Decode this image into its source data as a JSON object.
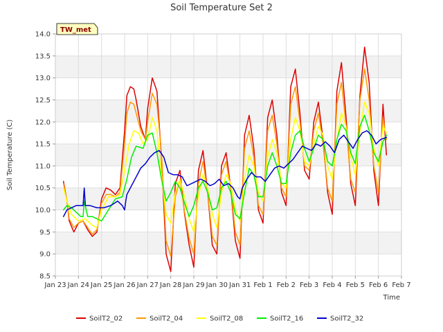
{
  "chart_data": {
    "type": "line",
    "title": "Soil Temperature Set 2",
    "xlabel": "Time",
    "ylabel": "Soil Temperature (C)",
    "badge": "TW_met",
    "ylim": [
      8.5,
      14.0
    ],
    "yticks": [
      "8.5",
      "9.0",
      "9.5",
      "10.0",
      "10.5",
      "11.0",
      "11.5",
      "12.0",
      "12.5",
      "13.0",
      "13.5",
      "14.0"
    ],
    "xlim": [
      0,
      15
    ],
    "xticks": [
      "Jan 23",
      "Jan 24",
      "Jan 25",
      "Jan 26",
      "Jan 27",
      "Jan 28",
      "Jan 29",
      "Jan 30",
      "Jan 31",
      "Feb 1",
      "Feb 2",
      "Feb 3",
      "Feb 4",
      "Feb 5",
      "Feb 6",
      "Feb 7"
    ],
    "grid": true,
    "legend_position": "bottom",
    "series": [
      {
        "name": "SoilT2_02",
        "color": "#dd0000",
        "x": [
          0.35,
          0.5,
          0.6,
          0.8,
          1.0,
          1.2,
          1.4,
          1.6,
          1.8,
          2.0,
          2.2,
          2.4,
          2.6,
          2.8,
          3.0,
          3.1,
          3.25,
          3.4,
          3.5,
          3.7,
          3.9,
          4.0,
          4.2,
          4.4,
          4.6,
          4.8,
          5.0,
          5.2,
          5.4,
          5.6,
          5.8,
          6.0,
          6.2,
          6.4,
          6.6,
          6.8,
          7.0,
          7.2,
          7.4,
          7.6,
          7.8,
          8.0,
          8.2,
          8.4,
          8.6,
          8.8,
          9.0,
          9.2,
          9.4,
          9.6,
          9.8,
          10.0,
          10.2,
          10.4,
          10.6,
          10.8,
          11.0,
          11.2,
          11.4,
          11.6,
          11.8,
          12.0,
          12.2,
          12.4,
          12.6,
          12.8,
          13.0,
          13.2,
          13.4,
          13.6,
          13.8,
          14.0,
          14.2,
          14.35
        ],
        "y": [
          10.65,
          10.2,
          9.75,
          9.5,
          9.7,
          9.75,
          9.55,
          9.4,
          9.5,
          10.25,
          10.5,
          10.45,
          10.35,
          10.5,
          11.8,
          12.6,
          12.8,
          12.75,
          12.5,
          11.9,
          11.6,
          12.3,
          13.0,
          12.7,
          11.2,
          9.0,
          8.6,
          10.6,
          10.9,
          9.9,
          9.2,
          8.7,
          10.9,
          11.35,
          10.4,
          9.2,
          9.0,
          11.0,
          11.3,
          10.5,
          9.3,
          8.9,
          11.7,
          12.15,
          11.4,
          10.0,
          9.7,
          12.1,
          12.5,
          11.7,
          10.4,
          10.1,
          12.8,
          13.2,
          12.2,
          10.9,
          10.7,
          12.0,
          12.45,
          11.6,
          10.4,
          9.9,
          12.7,
          13.35,
          12.1,
          10.6,
          10.1,
          12.6,
          13.7,
          12.9,
          10.9,
          10.1,
          12.4,
          11.25
        ]
      },
      {
        "name": "SoilT2_04",
        "color": "#ff9900",
        "x": [
          0.35,
          0.5,
          0.6,
          0.8,
          1.0,
          1.2,
          1.4,
          1.6,
          1.8,
          2.0,
          2.2,
          2.4,
          2.6,
          2.8,
          3.0,
          3.1,
          3.25,
          3.4,
          3.5,
          3.7,
          3.9,
          4.0,
          4.2,
          4.4,
          4.6,
          4.8,
          5.0,
          5.2,
          5.4,
          5.6,
          5.8,
          6.0,
          6.2,
          6.4,
          6.6,
          6.8,
          7.0,
          7.2,
          7.4,
          7.6,
          7.8,
          8.0,
          8.2,
          8.4,
          8.6,
          8.8,
          9.0,
          9.2,
          9.4,
          9.6,
          9.8,
          10.0,
          10.2,
          10.4,
          10.6,
          10.8,
          11.0,
          11.2,
          11.4,
          11.6,
          11.8,
          12.0,
          12.2,
          12.4,
          12.6,
          12.8,
          13.0,
          13.2,
          13.4,
          13.6,
          13.8,
          14.0,
          14.2,
          14.35
        ],
        "y": [
          10.6,
          10.2,
          9.8,
          9.6,
          9.7,
          9.75,
          9.6,
          9.45,
          9.55,
          10.15,
          10.35,
          10.35,
          10.3,
          10.4,
          11.5,
          12.2,
          12.45,
          12.4,
          12.2,
          11.8,
          11.6,
          12.0,
          12.65,
          12.4,
          11.3,
          9.3,
          8.95,
          10.3,
          10.7,
          9.95,
          9.35,
          9.0,
          10.6,
          11.1,
          10.4,
          9.4,
          9.2,
          10.8,
          11.1,
          10.5,
          9.5,
          9.2,
          11.4,
          11.8,
          11.2,
          10.1,
          9.9,
          11.8,
          12.15,
          11.5,
          10.5,
          10.3,
          12.4,
          12.8,
          12.0,
          11.0,
          10.9,
          11.8,
          12.2,
          11.5,
          10.5,
          10.2,
          12.4,
          12.9,
          11.9,
          10.7,
          10.4,
          12.5,
          13.2,
          12.5,
          11.0,
          10.4,
          12.1,
          11.6
        ]
      },
      {
        "name": "SoilT2_08",
        "color": "#ffff00",
        "x": [
          0.35,
          0.5,
          0.7,
          1.0,
          1.3,
          1.6,
          1.8,
          2.0,
          2.3,
          2.6,
          2.8,
          3.0,
          3.2,
          3.4,
          3.6,
          3.8,
          4.0,
          4.2,
          4.4,
          4.6,
          4.8,
          5.0,
          5.2,
          5.4,
          5.6,
          5.8,
          6.0,
          6.2,
          6.4,
          6.6,
          6.8,
          7.0,
          7.2,
          7.4,
          7.6,
          7.8,
          8.0,
          8.2,
          8.4,
          8.6,
          8.8,
          9.0,
          9.2,
          9.4,
          9.6,
          9.8,
          10.0,
          10.2,
          10.4,
          10.6,
          10.8,
          11.0,
          11.2,
          11.4,
          11.6,
          11.8,
          12.0,
          12.2,
          12.4,
          12.6,
          12.8,
          13.0,
          13.2,
          13.4,
          13.6,
          13.8,
          14.0,
          14.2,
          14.35
        ],
        "y": [
          10.5,
          10.2,
          9.9,
          9.75,
          9.8,
          9.65,
          9.6,
          10.0,
          10.3,
          10.3,
          10.35,
          10.9,
          11.5,
          11.8,
          11.75,
          11.5,
          11.6,
          12.1,
          11.8,
          10.8,
          9.9,
          9.7,
          10.4,
          10.7,
          10.3,
          9.8,
          9.5,
          10.3,
          10.8,
          10.5,
          9.9,
          9.6,
          10.4,
          10.8,
          10.6,
          10.0,
          9.75,
          10.7,
          11.25,
          11.0,
          10.4,
          10.2,
          11.2,
          11.6,
          11.3,
          10.6,
          10.5,
          11.6,
          12.1,
          11.8,
          11.1,
          11.0,
          11.5,
          11.9,
          11.7,
          11.0,
          10.7,
          11.6,
          12.2,
          11.9,
          11.2,
          10.8,
          11.8,
          12.45,
          12.2,
          11.4,
          11.0,
          11.9,
          11.75
        ]
      },
      {
        "name": "SoilT2_16",
        "color": "#00ee00",
        "x": [
          0.35,
          0.5,
          0.7,
          0.9,
          1.1,
          1.2,
          1.25,
          1.4,
          1.6,
          1.8,
          2.0,
          2.3,
          2.6,
          2.9,
          3.1,
          3.3,
          3.5,
          3.8,
          4.0,
          4.2,
          4.4,
          4.6,
          4.8,
          5.0,
          5.2,
          5.4,
          5.6,
          5.8,
          6.0,
          6.2,
          6.4,
          6.6,
          6.8,
          7.0,
          7.2,
          7.4,
          7.6,
          7.8,
          8.0,
          8.2,
          8.4,
          8.6,
          8.8,
          9.0,
          9.2,
          9.4,
          9.6,
          9.8,
          10.0,
          10.2,
          10.4,
          10.6,
          10.8,
          11.0,
          11.2,
          11.4,
          11.6,
          11.8,
          12.0,
          12.2,
          12.4,
          12.6,
          12.8,
          13.0,
          13.2,
          13.4,
          13.6,
          13.8,
          14.0,
          14.2,
          14.35
        ],
        "y": [
          10.0,
          10.1,
          10.05,
          9.95,
          9.85,
          9.85,
          10.2,
          9.85,
          9.85,
          9.8,
          9.75,
          10.0,
          10.25,
          10.3,
          10.7,
          11.2,
          11.45,
          11.4,
          11.7,
          11.75,
          11.3,
          10.7,
          10.2,
          10.4,
          10.65,
          10.5,
          10.15,
          9.85,
          10.1,
          10.5,
          10.65,
          10.4,
          10.0,
          10.05,
          10.5,
          10.65,
          10.4,
          9.9,
          9.8,
          10.4,
          10.95,
          10.8,
          10.3,
          10.3,
          11.0,
          11.3,
          11.0,
          10.6,
          10.6,
          11.3,
          11.7,
          11.8,
          11.4,
          11.1,
          11.4,
          11.7,
          11.6,
          11.1,
          11.0,
          11.6,
          11.95,
          11.8,
          11.3,
          11.05,
          11.9,
          12.15,
          11.8,
          11.3,
          11.1,
          11.55,
          11.7
        ]
      },
      {
        "name": "SoilT2_32",
        "color": "#0000cc",
        "x": [
          0.35,
          0.5,
          0.7,
          0.9,
          1.1,
          1.2,
          1.25,
          1.3,
          1.5,
          1.8,
          2.1,
          2.4,
          2.7,
          2.9,
          3.0,
          3.05,
          3.1,
          3.3,
          3.5,
          3.7,
          3.9,
          4.1,
          4.3,
          4.5,
          4.7,
          4.9,
          5.1,
          5.3,
          5.5,
          5.7,
          5.9,
          6.1,
          6.3,
          6.5,
          6.7,
          6.9,
          7.1,
          7.3,
          7.5,
          7.7,
          7.9,
          8.0,
          8.1,
          8.3,
          8.5,
          8.7,
          8.9,
          9.1,
          9.3,
          9.5,
          9.7,
          9.9,
          10.1,
          10.3,
          10.5,
          10.7,
          10.9,
          11.1,
          11.3,
          11.5,
          11.7,
          11.9,
          12.1,
          12.3,
          12.5,
          12.7,
          12.9,
          13.1,
          13.3,
          13.5,
          13.7,
          13.9,
          14.1,
          14.35
        ],
        "y": [
          9.85,
          10.0,
          10.05,
          10.1,
          10.1,
          10.1,
          10.5,
          10.1,
          10.1,
          10.05,
          10.05,
          10.1,
          10.2,
          10.1,
          10.0,
          10.2,
          10.35,
          10.55,
          10.75,
          10.95,
          11.05,
          11.2,
          11.3,
          11.35,
          11.2,
          10.85,
          10.8,
          10.8,
          10.75,
          10.55,
          10.6,
          10.65,
          10.7,
          10.65,
          10.55,
          10.6,
          10.7,
          10.55,
          10.6,
          10.5,
          10.3,
          10.25,
          10.5,
          10.7,
          10.85,
          10.75,
          10.75,
          10.65,
          10.8,
          10.95,
          11.0,
          10.95,
          11.05,
          11.15,
          11.3,
          11.45,
          11.4,
          11.35,
          11.5,
          11.45,
          11.55,
          11.45,
          11.3,
          11.6,
          11.7,
          11.55,
          11.4,
          11.6,
          11.75,
          11.8,
          11.7,
          11.5,
          11.6,
          11.65
        ]
      }
    ]
  }
}
